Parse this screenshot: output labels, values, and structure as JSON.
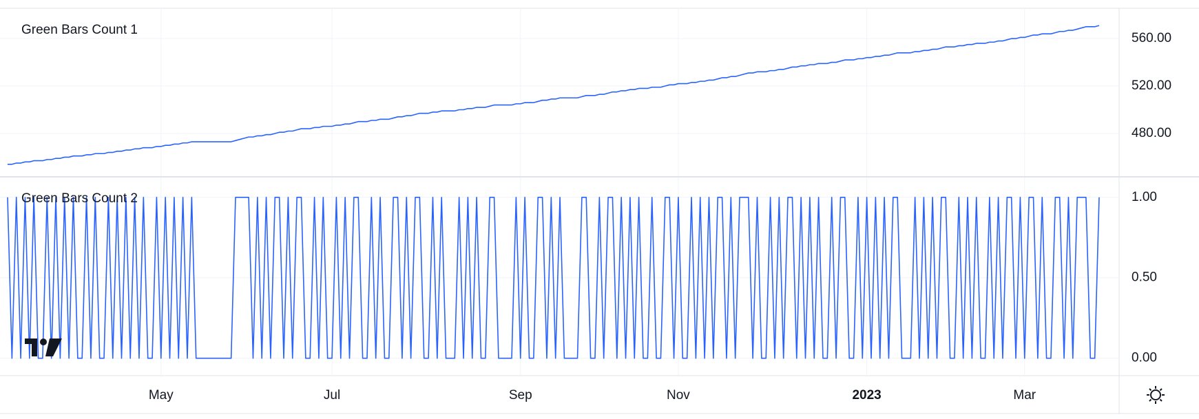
{
  "chart_data": {
    "type": "line",
    "grid": true,
    "color": "#2962ff",
    "categories": [
      null,
      null,
      null,
      null,
      null,
      null,
      null,
      null,
      null,
      null,
      null,
      null,
      null,
      null,
      null,
      null,
      null,
      null,
      null,
      null,
      null,
      null,
      null,
      null,
      null,
      null,
      null,
      null,
      null,
      null,
      null,
      null,
      null,
      null,
      null,
      "May",
      null,
      null,
      null,
      null,
      null,
      null,
      null,
      null,
      null,
      null,
      null,
      null,
      null,
      null,
      null,
      null,
      null,
      null,
      null,
      null,
      null,
      null,
      null,
      null,
      null,
      null,
      null,
      null,
      null,
      null,
      null,
      null,
      null,
      null,
      null,
      null,
      null,
      null,
      "Jul",
      null,
      null,
      null,
      null,
      null,
      null,
      null,
      null,
      null,
      null,
      null,
      null,
      null,
      null,
      null,
      null,
      null,
      null,
      null,
      null,
      null,
      null,
      null,
      null,
      null,
      null,
      null,
      null,
      null,
      null,
      null,
      null,
      null,
      null,
      null,
      null,
      null,
      null,
      null,
      null,
      null,
      null,
      "Sep",
      null,
      null,
      null,
      null,
      null,
      null,
      null,
      null,
      null,
      null,
      null,
      null,
      null,
      null,
      null,
      null,
      null,
      null,
      null,
      null,
      null,
      null,
      null,
      null,
      null,
      null,
      null,
      null,
      null,
      null,
      null,
      null,
      null,
      null,
      null,
      "Nov",
      null,
      null,
      null,
      null,
      null,
      null,
      null,
      null,
      null,
      null,
      null,
      null,
      null,
      null,
      null,
      null,
      null,
      null,
      null,
      null,
      null,
      null,
      null,
      null,
      null,
      null,
      null,
      null,
      null,
      null,
      null,
      null,
      null,
      null,
      null,
      null,
      null,
      null,
      null,
      null,
      null,
      null,
      "2023",
      null,
      null,
      null,
      null,
      null,
      null,
      null,
      null,
      null,
      null,
      null,
      null,
      null,
      null,
      null,
      null,
      null,
      null,
      null,
      null,
      null,
      null,
      null,
      null,
      null,
      null,
      null,
      null,
      null,
      null,
      null,
      null,
      null,
      null,
      null,
      "Mar",
      null,
      null,
      null,
      null,
      null,
      null,
      null,
      null,
      null,
      null,
      null,
      null,
      null,
      null,
      null,
      null,
      null
    ],
    "panes": [
      {
        "ylim": [
          444,
          585
        ],
        "yticks": [
          {
            "value": 480,
            "label": "480.00"
          },
          {
            "value": 520,
            "label": "520.00"
          },
          {
            "value": 560,
            "label": "560.00"
          }
        ],
        "series": [
          {
            "name": "Green Bars Count 1",
            "color": "#2962ff",
            "values": [
              454,
              454,
              455,
              455,
              456,
              456,
              457,
              457,
              457,
              458,
              458,
              459,
              459,
              460,
              460,
              461,
              461,
              461,
              462,
              462,
              463,
              463,
              463,
              464,
              464,
              465,
              465,
              466,
              466,
              467,
              467,
              468,
              468,
              468,
              469,
              469,
              470,
              470,
              471,
              471,
              472,
              472,
              473,
              473,
              473,
              473,
              473,
              473,
              473,
              473,
              473,
              473,
              474,
              475,
              476,
              477,
              477,
              478,
              478,
              479,
              479,
              480,
              481,
              481,
              482,
              482,
              483,
              484,
              484,
              484,
              485,
              485,
              486,
              486,
              486,
              487,
              487,
              488,
              488,
              489,
              490,
              490,
              490,
              491,
              491,
              492,
              492,
              492,
              493,
              494,
              494,
              495,
              495,
              496,
              497,
              497,
              497,
              498,
              498,
              499,
              499,
              499,
              499,
              500,
              500,
              501,
              501,
              502,
              502,
              502,
              503,
              504,
              504,
              504,
              504,
              504,
              505,
              505,
              506,
              506,
              506,
              507,
              508,
              508,
              509,
              509,
              510,
              510,
              510,
              510,
              510,
              511,
              512,
              512,
              512,
              513,
              513,
              514,
              515,
              515,
              516,
              516,
              517,
              517,
              518,
              518,
              518,
              519,
              519,
              519,
              520,
              521,
              521,
              522,
              522,
              522,
              523,
              523,
              524,
              524,
              525,
              525,
              526,
              527,
              527,
              528,
              528,
              529,
              530,
              531,
              531,
              532,
              532,
              532,
              533,
              533,
              534,
              534,
              535,
              536,
              536,
              537,
              537,
              538,
              538,
              539,
              539,
              539,
              540,
              540,
              541,
              542,
              542,
              542,
              543,
              543,
              544,
              544,
              545,
              545,
              546,
              546,
              547,
              548,
              548,
              548,
              548,
              549,
              549,
              550,
              550,
              551,
              551,
              552,
              553,
              553,
              553,
              554,
              554,
              555,
              555,
              556,
              556,
              556,
              557,
              557,
              558,
              558,
              559,
              560,
              560,
              561,
              561,
              562,
              563,
              563,
              564,
              564,
              564,
              565,
              566,
              566,
              567,
              567,
              568,
              569,
              570,
              570,
              570,
              571
            ]
          }
        ]
      },
      {
        "ylim": [
          -0.104,
          1.123
        ],
        "yticks": [
          {
            "value": 0,
            "label": "0.00"
          },
          {
            "value": 0.5,
            "label": "0.50"
          },
          {
            "value": 1,
            "label": "1.00"
          }
        ],
        "series": [
          {
            "name": "Green Bars Count 2",
            "color": "#2962ff",
            "values": [
              1,
              0,
              1,
              0,
              1,
              0,
              1,
              0,
              0,
              1,
              0,
              1,
              0,
              1,
              0,
              1,
              0,
              0,
              1,
              0,
              1,
              0,
              0,
              1,
              0,
              1,
              0,
              1,
              0,
              1,
              0,
              1,
              0,
              0,
              1,
              0,
              1,
              0,
              1,
              0,
              1,
              0,
              1,
              0,
              0,
              0,
              0,
              0,
              0,
              0,
              0,
              0,
              1,
              1,
              1,
              1,
              0,
              1,
              0,
              1,
              0,
              1,
              1,
              0,
              1,
              0,
              1,
              1,
              0,
              0,
              1,
              0,
              1,
              0,
              0,
              1,
              0,
              1,
              0,
              1,
              1,
              0,
              0,
              1,
              0,
              1,
              0,
              0,
              1,
              1,
              0,
              1,
              0,
              1,
              1,
              0,
              0,
              1,
              0,
              1,
              0,
              0,
              0,
              1,
              0,
              1,
              0,
              1,
              0,
              0,
              1,
              1,
              0,
              0,
              0,
              0,
              1,
              0,
              1,
              0,
              0,
              1,
              1,
              0,
              1,
              0,
              1,
              0,
              0,
              0,
              0,
              1,
              1,
              0,
              0,
              1,
              0,
              1,
              1,
              0,
              1,
              0,
              1,
              0,
              1,
              0,
              0,
              1,
              0,
              0,
              1,
              1,
              0,
              1,
              0,
              0,
              1,
              0,
              1,
              0,
              1,
              0,
              1,
              1,
              0,
              1,
              0,
              1,
              1,
              1,
              0,
              1,
              0,
              0,
              1,
              0,
              1,
              0,
              1,
              1,
              0,
              1,
              0,
              1,
              0,
              1,
              0,
              0,
              1,
              0,
              1,
              1,
              0,
              0,
              1,
              0,
              1,
              0,
              1,
              0,
              1,
              0,
              1,
              1,
              0,
              0,
              0,
              1,
              0,
              1,
              0,
              1,
              0,
              1,
              1,
              0,
              0,
              1,
              0,
              1,
              0,
              1,
              0,
              0,
              1,
              0,
              1,
              0,
              1,
              1,
              0,
              1,
              0,
              1,
              1,
              0,
              1,
              0,
              0,
              1,
              1,
              0,
              1,
              0,
              1,
              1,
              1,
              0,
              0,
              1
            ]
          }
        ]
      }
    ]
  }
}
